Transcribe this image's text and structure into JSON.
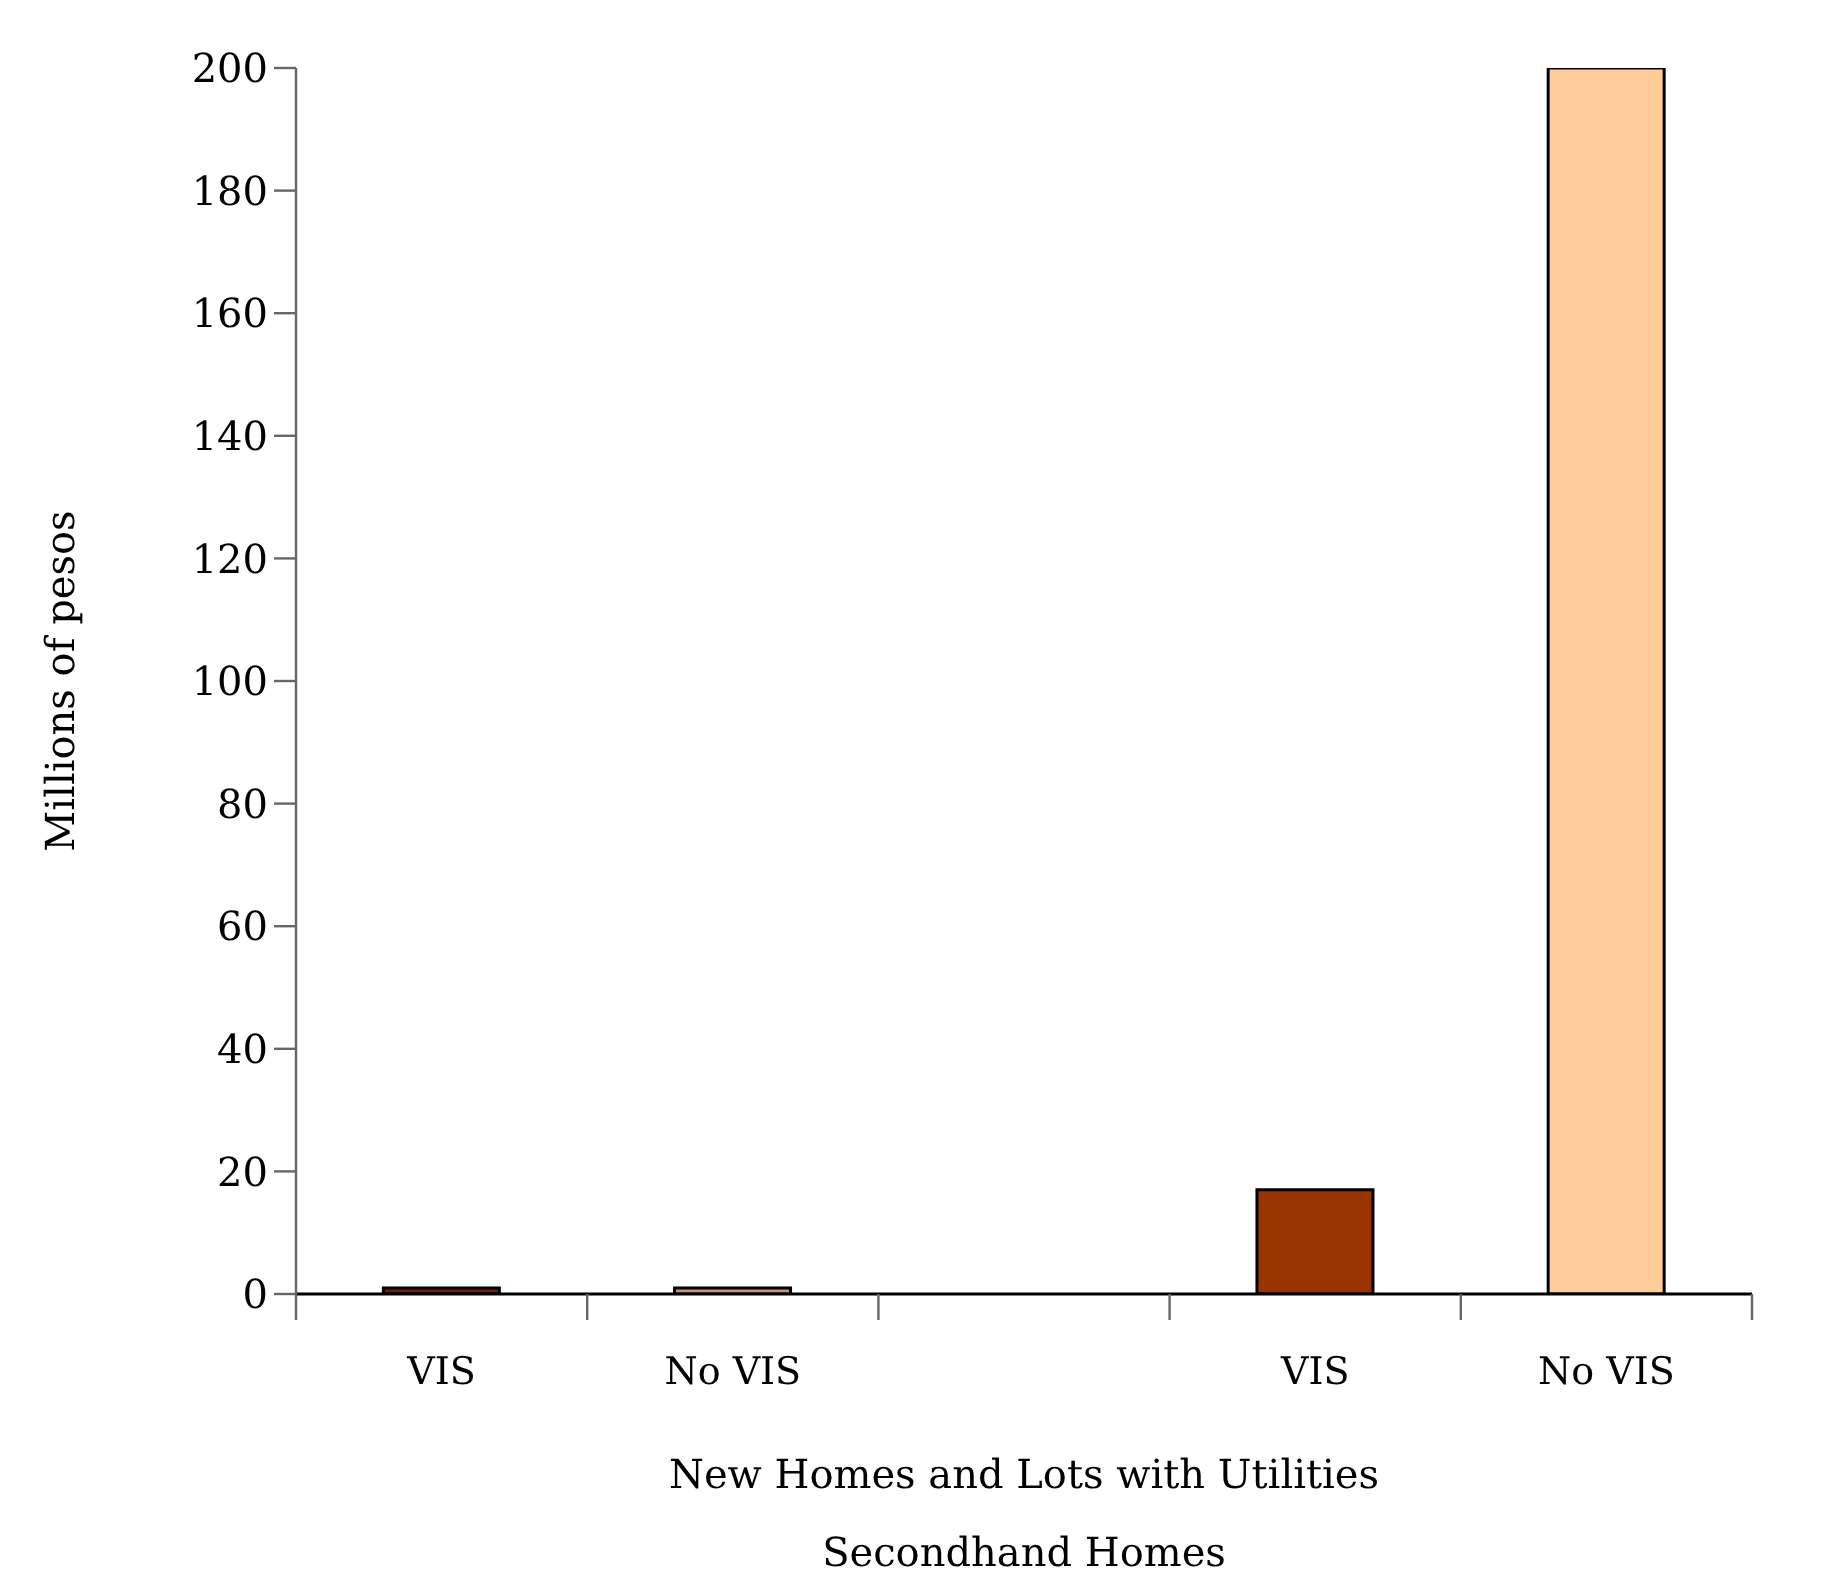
{
  "chart_data": {
    "type": "bar",
    "categories": [
      "VIS",
      "No VIS",
      null,
      "VIS",
      "No VIS"
    ],
    "values": [
      0,
      0,
      null,
      17,
      200
    ],
    "colors": [
      "#6b2300",
      "#c19a72",
      null,
      "#993300",
      "#ffcc99"
    ],
    "ylabel": "Millions of pesos",
    "xlabel": "New Homes and Lots with Utilities",
    "annotations": [
      "Secondhand Homes"
    ],
    "ylim": [
      0,
      200
    ],
    "yticks": [
      0,
      20,
      40,
      60,
      80,
      100,
      120,
      140,
      160,
      180,
      200
    ]
  }
}
